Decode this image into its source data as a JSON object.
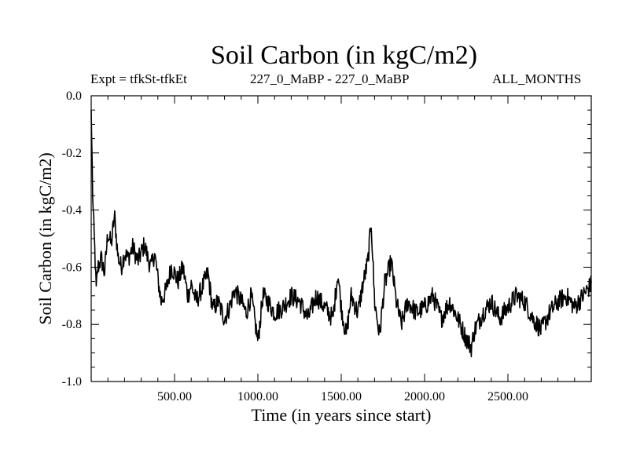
{
  "chart_data": {
    "type": "line",
    "title": "Soil Carbon (in kgC/m2)",
    "subtitle_left": "Expt = tfkSt-tfkEt",
    "subtitle_center": "227_0_MaBP - 227_0_MaBP",
    "subtitle_right": "ALL_MONTHS",
    "xlabel": "Time (in years since start)",
    "ylabel": "Soil Carbon (in kgC/m2)",
    "xlim": [
      0,
      3000
    ],
    "ylim": [
      -1.0,
      0.0
    ],
    "xticks": [
      500,
      1000,
      1500,
      2000,
      2500
    ],
    "xtick_labels": [
      "500.00",
      "1000.00",
      "1500.00",
      "2000.00",
      "2500.00"
    ],
    "yticks": [
      0.0,
      -0.2,
      -0.4,
      -0.6,
      -0.8,
      -1.0
    ],
    "ytick_labels": [
      "0.0",
      "-0.2",
      "-0.4",
      "-0.6",
      "-0.8",
      "-1.0"
    ],
    "grid": false,
    "series": [
      {
        "name": "Soil Carbon",
        "x": [
          0,
          10,
          20,
          30,
          40,
          60,
          80,
          100,
          120,
          140,
          160,
          180,
          200,
          220,
          250,
          280,
          300,
          320,
          340,
          360,
          380,
          400,
          420,
          450,
          480,
          500,
          520,
          550,
          580,
          600,
          630,
          660,
          700,
          730,
          760,
          800,
          830,
          860,
          900,
          930,
          960,
          1000,
          1030,
          1060,
          1100,
          1150,
          1200,
          1250,
          1300,
          1350,
          1400,
          1450,
          1480,
          1500,
          1530,
          1560,
          1600,
          1630,
          1660,
          1680,
          1700,
          1730,
          1760,
          1800,
          1830,
          1860,
          1900,
          1950,
          2000,
          2050,
          2100,
          2150,
          2200,
          2250,
          2280,
          2300,
          2350,
          2400,
          2450,
          2500,
          2550,
          2600,
          2650,
          2700,
          2750,
          2800,
          2850,
          2900,
          2950,
          3000
        ],
        "values": [
          -0.05,
          -0.38,
          -0.52,
          -0.68,
          -0.6,
          -0.57,
          -0.62,
          -0.48,
          -0.52,
          -0.42,
          -0.56,
          -0.6,
          -0.55,
          -0.57,
          -0.53,
          -0.58,
          -0.55,
          -0.52,
          -0.57,
          -0.6,
          -0.55,
          -0.64,
          -0.72,
          -0.68,
          -0.6,
          -0.62,
          -0.65,
          -0.6,
          -0.7,
          -0.66,
          -0.72,
          -0.68,
          -0.62,
          -0.75,
          -0.72,
          -0.78,
          -0.74,
          -0.68,
          -0.72,
          -0.76,
          -0.7,
          -0.86,
          -0.7,
          -0.72,
          -0.76,
          -0.74,
          -0.7,
          -0.72,
          -0.78,
          -0.7,
          -0.74,
          -0.78,
          -0.62,
          -0.74,
          -0.84,
          -0.7,
          -0.76,
          -0.66,
          -0.58,
          -0.44,
          -0.72,
          -0.84,
          -0.66,
          -0.58,
          -0.72,
          -0.8,
          -0.72,
          -0.76,
          -0.74,
          -0.7,
          -0.78,
          -0.72,
          -0.78,
          -0.85,
          -0.88,
          -0.82,
          -0.76,
          -0.72,
          -0.78,
          -0.74,
          -0.7,
          -0.72,
          -0.78,
          -0.82,
          -0.76,
          -0.72,
          -0.7,
          -0.74,
          -0.7,
          -0.66
        ]
      }
    ]
  }
}
